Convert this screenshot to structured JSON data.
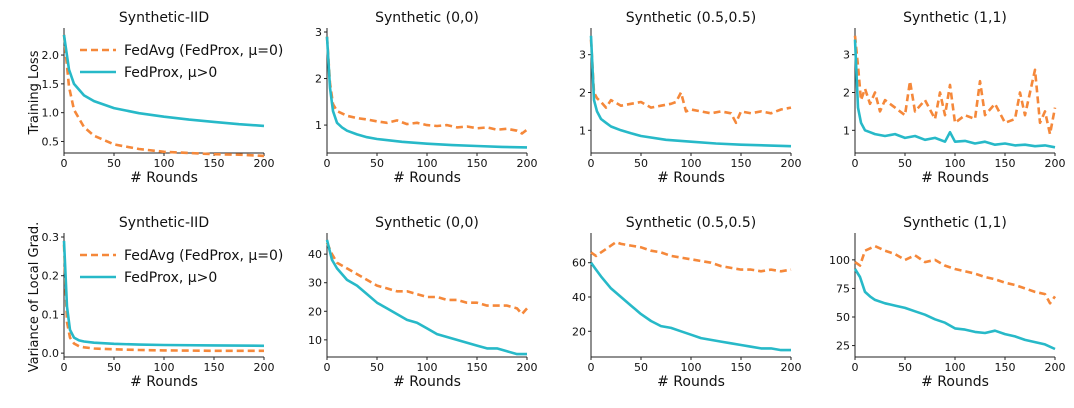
{
  "figure": {
    "ylabel_row1": "Training Loss",
    "ylabel_row2": "Variance of Local Grad.",
    "legend": [
      {
        "label": "FedAvg (FedProx, μ=0)",
        "color": "#f5883a",
        "dash": true
      },
      {
        "label": "FedProx, μ>0",
        "color": "#27b9c8",
        "dash": false
      }
    ]
  },
  "chart_data": [
    {
      "type": "line",
      "title": "Synthetic-IID",
      "xlabel": "# Rounds",
      "ylabel": "Training Loss",
      "xlim": [
        0,
        200
      ],
      "ylim": [
        0.3,
        2.4
      ],
      "xticks": [
        0,
        50,
        100,
        150,
        200
      ],
      "yticks": [
        0.5,
        1.0,
        1.5,
        2.0
      ],
      "yticklabels": [
        "0.5",
        "1.0",
        "1.5",
        "2.0"
      ],
      "series": [
        {
          "name": "FedAvg (FedProx, μ=0)",
          "x": [
            0,
            5,
            10,
            20,
            30,
            50,
            75,
            100,
            125,
            150,
            175,
            200
          ],
          "y": [
            2.35,
            1.45,
            1.05,
            0.75,
            0.6,
            0.45,
            0.37,
            0.32,
            0.3,
            0.28,
            0.27,
            0.25
          ]
        },
        {
          "name": "FedProx, μ>0",
          "x": [
            0,
            5,
            10,
            20,
            30,
            50,
            75,
            100,
            125,
            150,
            175,
            200
          ],
          "y": [
            2.35,
            1.75,
            1.5,
            1.3,
            1.2,
            1.08,
            0.99,
            0.93,
            0.88,
            0.84,
            0.8,
            0.77
          ]
        }
      ]
    },
    {
      "type": "line",
      "title": "Synthetic (0,0)",
      "xlabel": "# Rounds",
      "ylabel": "",
      "xlim": [
        0,
        200
      ],
      "ylim": [
        0.4,
        3.0
      ],
      "xticks": [
        0,
        50,
        100,
        150,
        200
      ],
      "yticks": [
        1,
        2,
        3
      ],
      "yticklabels": [
        "1",
        "2",
        "3"
      ],
      "series": [
        {
          "name": "FedAvg (FedProx, μ=0)",
          "x": [
            0,
            3,
            6,
            10,
            15,
            20,
            30,
            40,
            50,
            60,
            70,
            80,
            90,
            100,
            110,
            120,
            130,
            140,
            150,
            160,
            170,
            180,
            190,
            195,
            200
          ],
          "y": [
            2.9,
            1.9,
            1.45,
            1.3,
            1.25,
            1.2,
            1.15,
            1.12,
            1.08,
            1.05,
            1.1,
            1.02,
            1.05,
            1.0,
            0.98,
            1.0,
            0.95,
            0.97,
            0.93,
            0.95,
            0.9,
            0.92,
            0.88,
            0.82,
            0.9
          ]
        },
        {
          "name": "FedProx, μ>0",
          "x": [
            0,
            3,
            6,
            10,
            15,
            20,
            30,
            40,
            50,
            75,
            100,
            125,
            150,
            175,
            200
          ],
          "y": [
            2.9,
            1.8,
            1.3,
            1.05,
            0.95,
            0.88,
            0.8,
            0.74,
            0.7,
            0.64,
            0.6,
            0.57,
            0.55,
            0.53,
            0.52
          ]
        }
      ]
    },
    {
      "type": "line",
      "title": "Synthetic (0.5,0.5)",
      "xlabel": "# Rounds",
      "ylabel": "",
      "xlim": [
        0,
        200
      ],
      "ylim": [
        0.4,
        3.6
      ],
      "xticks": [
        0,
        50,
        100,
        150,
        200
      ],
      "yticks": [
        1,
        2,
        3
      ],
      "yticklabels": [
        "1",
        "2",
        "3"
      ],
      "series": [
        {
          "name": "FedAvg (FedProx, μ=0)",
          "x": [
            0,
            3,
            6,
            10,
            15,
            20,
            30,
            40,
            50,
            60,
            70,
            80,
            85,
            90,
            95,
            100,
            110,
            120,
            130,
            140,
            145,
            150,
            160,
            170,
            180,
            190,
            200
          ],
          "y": [
            3.4,
            2.0,
            1.85,
            1.75,
            1.6,
            1.8,
            1.65,
            1.7,
            1.75,
            1.6,
            1.65,
            1.7,
            1.75,
            2.0,
            1.5,
            1.55,
            1.5,
            1.45,
            1.5,
            1.45,
            1.2,
            1.5,
            1.45,
            1.5,
            1.45,
            1.55,
            1.6
          ]
        },
        {
          "name": "FedProx, μ>0",
          "x": [
            0,
            3,
            6,
            10,
            15,
            20,
            30,
            40,
            50,
            75,
            100,
            125,
            150,
            175,
            200
          ],
          "y": [
            3.5,
            1.8,
            1.5,
            1.3,
            1.2,
            1.1,
            1.0,
            0.92,
            0.85,
            0.75,
            0.7,
            0.65,
            0.62,
            0.6,
            0.58
          ]
        }
      ]
    },
    {
      "type": "line",
      "title": "Synthetic (1,1)",
      "xlabel": "# Rounds",
      "ylabel": "",
      "xlim": [
        0,
        200
      ],
      "ylim": [
        0.4,
        3.6
      ],
      "xticks": [
        0,
        50,
        100,
        150,
        200
      ],
      "yticks": [
        1,
        2,
        3
      ],
      "yticklabels": [
        "1",
        "2",
        "3"
      ],
      "series": [
        {
          "name": "FedAvg (FedProx, μ=0)",
          "x": [
            0,
            3,
            6,
            10,
            15,
            20,
            25,
            30,
            40,
            50,
            55,
            60,
            70,
            80,
            85,
            90,
            95,
            100,
            110,
            120,
            125,
            130,
            140,
            150,
            160,
            165,
            170,
            180,
            185,
            190,
            195,
            200
          ],
          "y": [
            3.5,
            2.7,
            1.8,
            2.1,
            1.7,
            2.0,
            1.5,
            1.8,
            1.6,
            1.4,
            2.3,
            1.5,
            1.8,
            1.3,
            2.0,
            1.4,
            2.2,
            1.2,
            1.4,
            1.3,
            2.3,
            1.4,
            1.7,
            1.2,
            1.3,
            2.0,
            1.4,
            2.6,
            1.2,
            1.5,
            0.9,
            1.6
          ]
        },
        {
          "name": "FedProx, μ>0",
          "x": [
            0,
            3,
            6,
            10,
            15,
            20,
            30,
            40,
            50,
            60,
            70,
            80,
            90,
            95,
            100,
            110,
            120,
            130,
            140,
            150,
            160,
            170,
            180,
            190,
            200
          ],
          "y": [
            3.4,
            1.6,
            1.2,
            1.0,
            0.95,
            0.9,
            0.85,
            0.9,
            0.8,
            0.85,
            0.75,
            0.8,
            0.7,
            0.95,
            0.7,
            0.72,
            0.65,
            0.7,
            0.62,
            0.65,
            0.6,
            0.62,
            0.58,
            0.6,
            0.55
          ]
        }
      ]
    },
    {
      "type": "line",
      "title": "Synthetic-IID",
      "xlabel": "# Rounds",
      "ylabel": "Variance of Local Grad.",
      "xlim": [
        0,
        200
      ],
      "ylim": [
        -0.01,
        0.3
      ],
      "xticks": [
        0,
        50,
        100,
        150,
        200
      ],
      "yticks": [
        0.0,
        0.1,
        0.2,
        0.3
      ],
      "yticklabels": [
        "0.0",
        "0.1",
        "0.2",
        "0.3"
      ],
      "series": [
        {
          "name": "FedAvg (FedProx, μ=0)",
          "x": [
            0,
            3,
            6,
            10,
            15,
            20,
            30,
            50,
            75,
            100,
            150,
            200
          ],
          "y": [
            0.28,
            0.08,
            0.04,
            0.025,
            0.018,
            0.015,
            0.012,
            0.01,
            0.008,
            0.007,
            0.006,
            0.006
          ]
        },
        {
          "name": "FedProx, μ>0",
          "x": [
            0,
            3,
            6,
            10,
            15,
            20,
            30,
            50,
            75,
            100,
            150,
            200
          ],
          "y": [
            0.29,
            0.12,
            0.06,
            0.04,
            0.033,
            0.03,
            0.027,
            0.024,
            0.022,
            0.021,
            0.02,
            0.019
          ]
        }
      ]
    },
    {
      "type": "line",
      "title": "Synthetic (0,0)",
      "xlabel": "# Rounds",
      "ylabel": "",
      "xlim": [
        0,
        200
      ],
      "ylim": [
        4,
        46
      ],
      "xticks": [
        0,
        50,
        100,
        150,
        200
      ],
      "yticks": [
        10,
        20,
        30,
        40
      ],
      "yticklabels": [
        "10",
        "20",
        "30",
        "40"
      ],
      "series": [
        {
          "name": "FedAvg (FedProx, μ=0)",
          "x": [
            0,
            5,
            10,
            20,
            30,
            40,
            50,
            60,
            70,
            80,
            90,
            100,
            110,
            120,
            130,
            140,
            150,
            160,
            170,
            180,
            190,
            195,
            200
          ],
          "y": [
            44,
            40,
            37,
            35,
            33,
            31,
            29,
            28,
            27,
            27,
            26,
            25,
            25,
            24,
            24,
            23,
            23,
            22,
            22,
            22,
            21,
            19,
            21
          ]
        },
        {
          "name": "FedProx, μ>0",
          "x": [
            0,
            5,
            10,
            20,
            30,
            40,
            50,
            60,
            70,
            80,
            90,
            100,
            110,
            120,
            130,
            140,
            150,
            160,
            170,
            180,
            190,
            200
          ],
          "y": [
            45,
            38,
            35,
            31,
            29,
            26,
            23,
            21,
            19,
            17,
            16,
            14,
            12,
            11,
            10,
            9,
            8,
            7,
            7,
            6,
            5,
            5
          ]
        }
      ]
    },
    {
      "type": "line",
      "title": "Synthetic (0.5,0.5)",
      "xlabel": "# Rounds",
      "ylabel": "",
      "xlim": [
        0,
        200
      ],
      "ylim": [
        5,
        75
      ],
      "xticks": [
        0,
        50,
        100,
        150,
        200
      ],
      "yticks": [
        20,
        40,
        60
      ],
      "yticklabels": [
        "20",
        "40",
        "60"
      ],
      "series": [
        {
          "name": "FedAvg (FedProx, μ=0)",
          "x": [
            0,
            5,
            10,
            20,
            25,
            30,
            40,
            50,
            60,
            70,
            80,
            90,
            100,
            110,
            120,
            130,
            140,
            150,
            160,
            170,
            180,
            190,
            200
          ],
          "y": [
            66,
            64,
            66,
            70,
            72,
            71,
            70,
            69,
            67,
            66,
            64,
            63,
            62,
            61,
            60,
            58,
            57,
            56,
            56,
            55,
            56,
            55,
            56
          ]
        },
        {
          "name": "FedProx, μ>0",
          "x": [
            0,
            5,
            10,
            20,
            30,
            40,
            50,
            60,
            70,
            80,
            90,
            100,
            110,
            120,
            130,
            140,
            150,
            160,
            170,
            180,
            190,
            200
          ],
          "y": [
            60,
            56,
            52,
            45,
            40,
            35,
            30,
            26,
            23,
            22,
            20,
            18,
            16,
            15,
            14,
            13,
            12,
            11,
            10,
            10,
            9,
            9
          ]
        }
      ]
    },
    {
      "type": "line",
      "title": "Synthetic (1,1)",
      "xlabel": "# Rounds",
      "ylabel": "",
      "xlim": [
        0,
        200
      ],
      "ylim": [
        15,
        120
      ],
      "xticks": [
        0,
        50,
        100,
        150,
        200
      ],
      "yticks": [
        25,
        50,
        75,
        100
      ],
      "yticklabels": [
        "25",
        "50",
        "75",
        "100"
      ],
      "series": [
        {
          "name": "FedAvg (FedProx, μ=0)",
          "x": [
            0,
            5,
            10,
            15,
            20,
            30,
            40,
            50,
            60,
            70,
            80,
            90,
            100,
            110,
            120,
            130,
            140,
            150,
            160,
            170,
            180,
            190,
            195,
            200
          ],
          "y": [
            98,
            95,
            108,
            110,
            112,
            108,
            105,
            100,
            104,
            98,
            100,
            95,
            92,
            90,
            88,
            85,
            83,
            80,
            78,
            75,
            72,
            70,
            62,
            68
          ]
        },
        {
          "name": "FedProx, μ>0",
          "x": [
            0,
            5,
            10,
            15,
            20,
            30,
            40,
            50,
            60,
            70,
            80,
            90,
            100,
            110,
            120,
            130,
            140,
            150,
            160,
            170,
            180,
            190,
            200
          ],
          "y": [
            92,
            85,
            72,
            68,
            65,
            62,
            60,
            58,
            55,
            52,
            48,
            45,
            40,
            39,
            37,
            36,
            38,
            35,
            33,
            30,
            28,
            26,
            22
          ]
        }
      ]
    }
  ]
}
